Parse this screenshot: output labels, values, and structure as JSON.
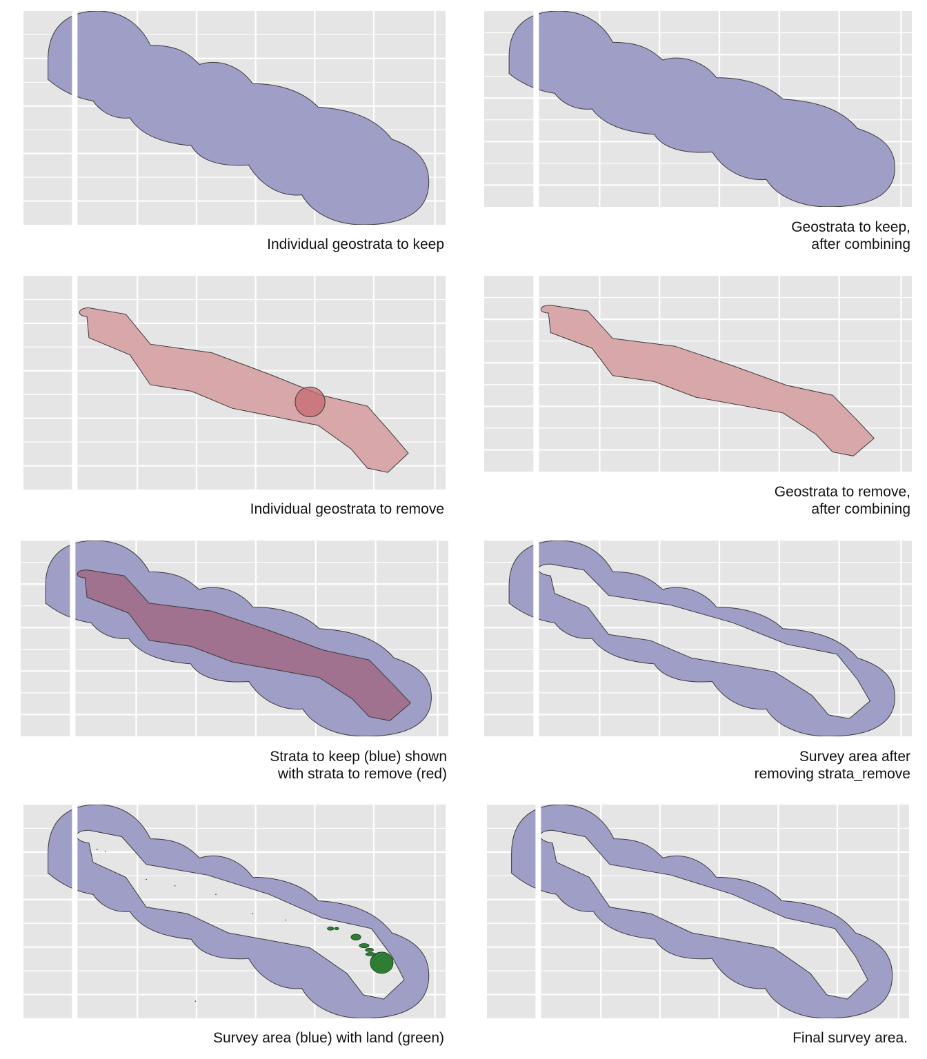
{
  "colors": {
    "panel_background": "#e5e5e5",
    "grid_line": "#ffffff",
    "keep_fill": "#9e9ec6",
    "remove_fill": "#d8a7a9",
    "overlap_fill": "#a07290",
    "land_fill": "#2e7d32",
    "outline": "#3a3a3a"
  },
  "panels": [
    {
      "id": "p1",
      "caption_lines": [
        "Individual geostrata to keep"
      ],
      "content": "keep-individual"
    },
    {
      "id": "p2",
      "caption_lines": [
        "Geostrata to keep,",
        "after combining"
      ],
      "content": "keep-combined"
    },
    {
      "id": "p3",
      "caption_lines": [
        "Individual geostrata to remove"
      ],
      "content": "remove-individual"
    },
    {
      "id": "p4",
      "caption_lines": [
        "Geostrata to remove,",
        "after combining"
      ],
      "content": "remove-combined"
    },
    {
      "id": "p5",
      "caption_lines": [
        "Strata to keep (blue) shown",
        "with strata to remove (red)"
      ],
      "content": "keep-with-remove"
    },
    {
      "id": "p6",
      "caption_lines": [
        "Survey area after",
        "removing strata_remove"
      ],
      "content": "survey-area"
    },
    {
      "id": "p7",
      "caption_lines": [
        "Survey area (blue) with land (green)"
      ],
      "content": "survey-with-land"
    },
    {
      "id": "p8",
      "caption_lines": [
        "Final survey area."
      ],
      "content": "final-survey-area"
    }
  ]
}
